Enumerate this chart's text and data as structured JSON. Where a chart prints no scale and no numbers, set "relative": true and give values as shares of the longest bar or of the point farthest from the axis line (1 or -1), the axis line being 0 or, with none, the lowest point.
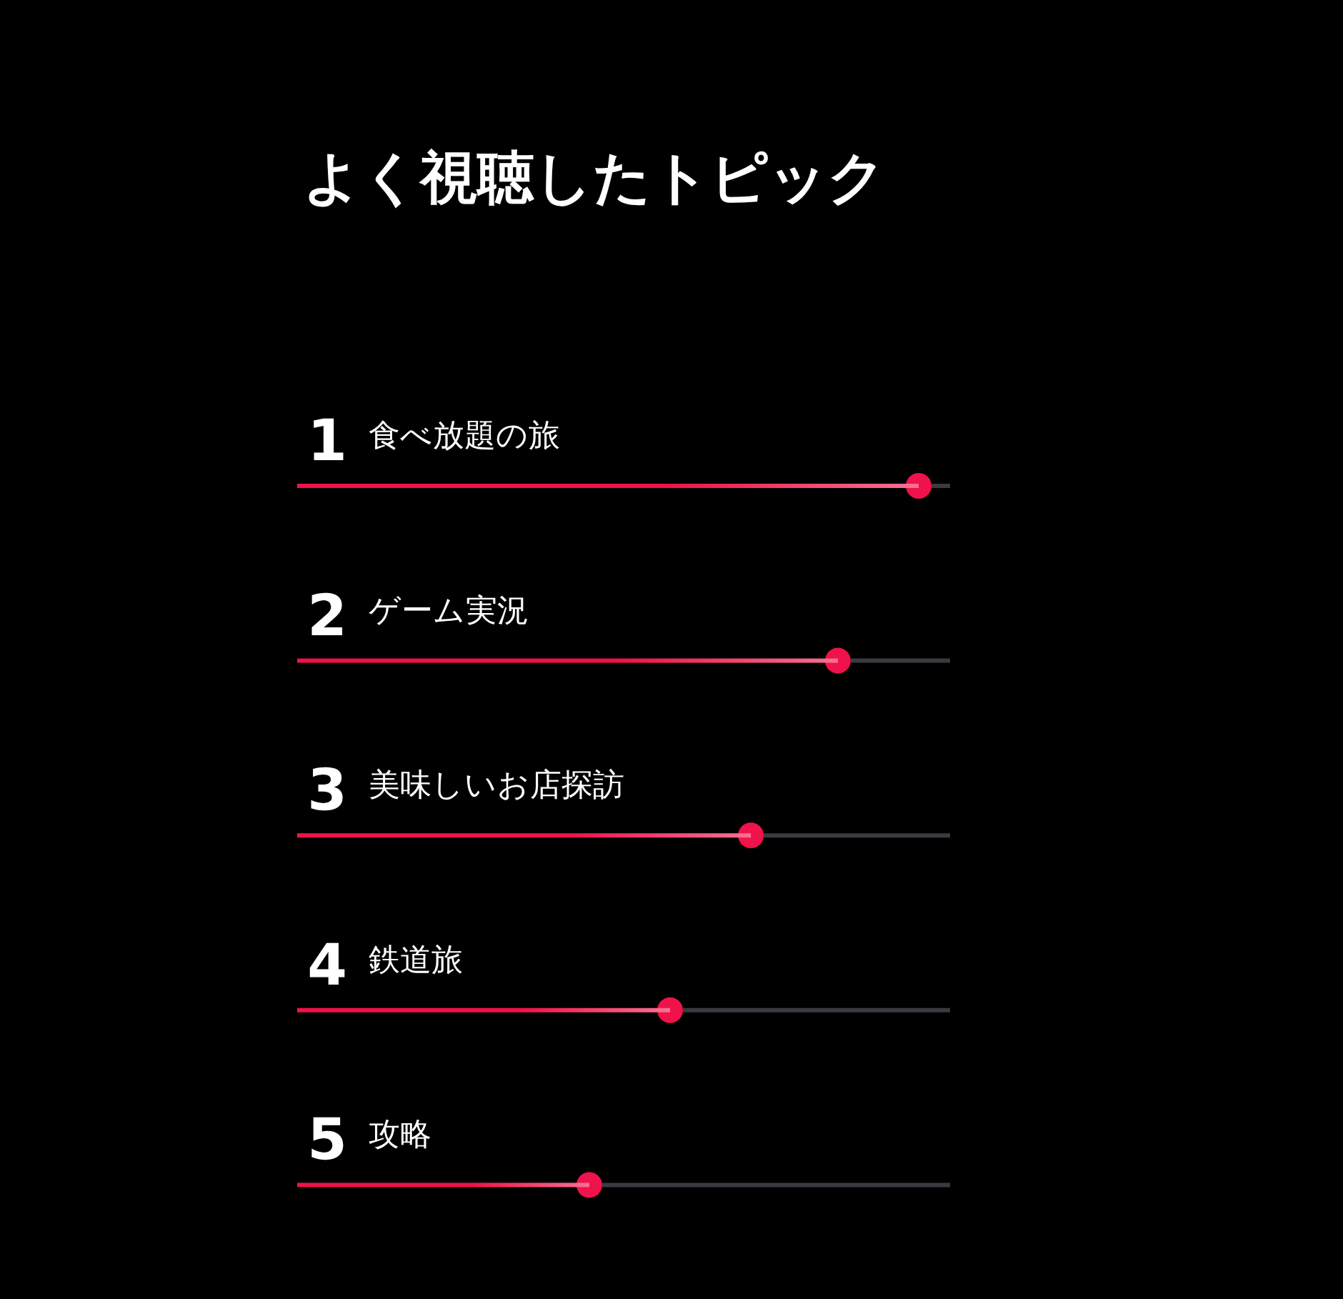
{
  "chart_data": {
    "type": "bar",
    "orientation": "horizontal",
    "relative": true,
    "title": "よく視聴したトピック",
    "categories": [
      "食べ放題の旅",
      "ゲーム実況",
      "美味しいお店探訪",
      "鉄道旅",
      "攻略"
    ],
    "values": [
      1,
      0.87,
      0.73,
      0.6,
      0.47
    ],
    "color": "#f0124a",
    "marker": "circle",
    "annotations": [
      "1",
      "2",
      "3",
      "4",
      "5"
    ]
  }
}
